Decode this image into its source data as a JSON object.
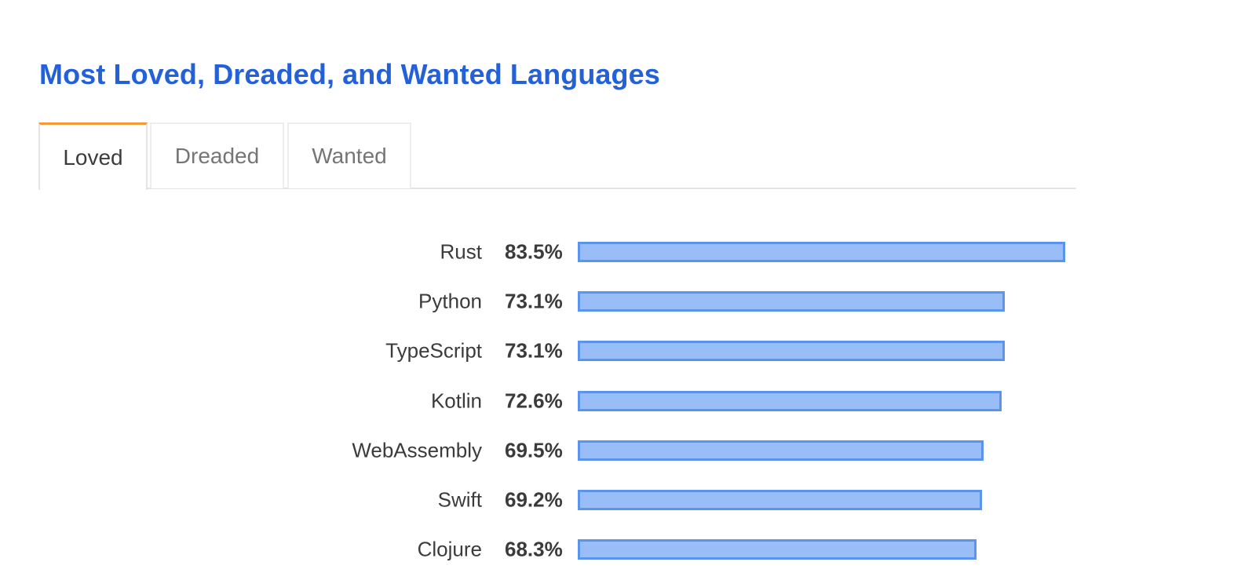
{
  "page": {
    "title": "Most Loved, Dreaded, and Wanted Languages"
  },
  "tabs": [
    {
      "label": "Loved",
      "active": true
    },
    {
      "label": "Dreaded",
      "active": false
    },
    {
      "label": "Wanted",
      "active": false
    }
  ],
  "colors": {
    "title": "#2460d8",
    "active_tab_accent": "#f49b37",
    "bar_fill": "#99bdf6",
    "bar_border": "#5a94ec"
  },
  "chart_data": {
    "type": "bar",
    "orientation": "horizontal",
    "categories": [
      "Rust",
      "Python",
      "TypeScript",
      "Kotlin",
      "WebAssembly",
      "Swift",
      "Clojure"
    ],
    "values": [
      83.5,
      73.1,
      73.1,
      72.6,
      69.5,
      69.2,
      68.3
    ],
    "value_labels": [
      "83.5%",
      "73.1%",
      "73.1%",
      "72.6%",
      "69.5%",
      "69.2%",
      "68.3%"
    ],
    "unit": "%",
    "xlim": [
      0,
      83.5
    ],
    "grid": false
  }
}
